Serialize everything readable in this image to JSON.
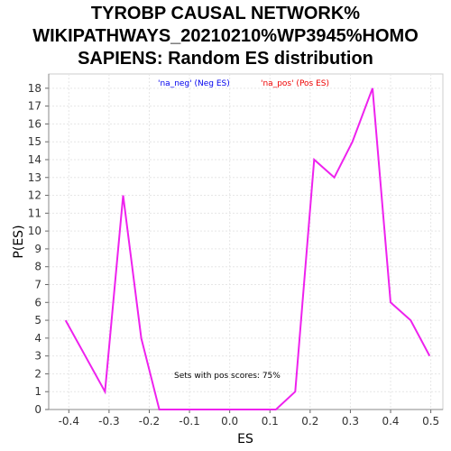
{
  "chart_data": {
    "type": "line",
    "title_lines": [
      "TYROBP CAUSAL NETWORK%",
      "WIKIPATHWAYS_20210210%WP3945%HOMO",
      "SAPIENS: Random ES distribution"
    ],
    "xlabel": "ES",
    "ylabel": "P(ES)",
    "xlim": [
      -0.45,
      0.53
    ],
    "ylim": [
      0,
      18.8
    ],
    "x_ticks": [
      -0.4,
      -0.3,
      -0.2,
      -0.1,
      0.0,
      0.1,
      0.2,
      0.3,
      0.4,
      0.5
    ],
    "x_tick_labels": [
      "-0.4",
      "-0.3",
      "-0.2",
      "-0.1",
      "0.0",
      "0.1",
      "0.2",
      "0.3",
      "0.4",
      "0.5"
    ],
    "y_ticks": [
      0,
      1,
      2,
      3,
      4,
      5,
      6,
      7,
      8,
      9,
      10,
      11,
      12,
      13,
      14,
      15,
      16,
      17,
      18
    ],
    "y_tick_labels": [
      "0",
      "1",
      "2",
      "3",
      "4",
      "5",
      "6",
      "7",
      "8",
      "9",
      "10",
      "11",
      "12",
      "13",
      "14",
      "15",
      "16",
      "17",
      "18"
    ],
    "grid": true,
    "legend": [
      {
        "label": "'na_neg' (Neg ES)",
        "color": "#0000ee"
      },
      {
        "label": "'na_pos' (Pos ES)",
        "color": "#ee0000"
      }
    ],
    "series": [
      {
        "color": "#ee22ee",
        "x": [
          -0.408,
          -0.31,
          -0.265,
          -0.22,
          -0.175,
          0.115,
          0.163,
          0.21,
          0.26,
          0.305,
          0.355,
          0.4,
          0.45,
          0.497
        ],
        "y": [
          5,
          1,
          12,
          4,
          0,
          0,
          1,
          14,
          13,
          15,
          18,
          6,
          5,
          3
        ]
      }
    ],
    "annotation": "Sets with pos scores: 75%"
  }
}
